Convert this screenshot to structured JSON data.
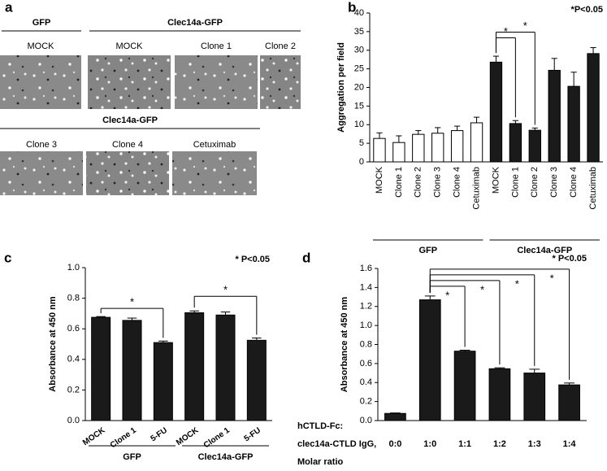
{
  "panel_a": {
    "panel": "a",
    "row1": {
      "groups": [
        {
          "name": "GFP",
          "labels": [
            "MOCK"
          ]
        },
        {
          "name": "Clec14a-GFP",
          "labels": [
            "MOCK",
            "Clone 1",
            "Clone 2"
          ]
        }
      ]
    },
    "row2": {
      "groups": [
        {
          "name": "Clec14a-GFP",
          "labels": [
            "Clone 3",
            "Clone 4",
            "Cetuximab"
          ]
        }
      ]
    }
  },
  "chart_data": [
    {
      "type": "bar",
      "panel": "b",
      "ylabel": "Aggregation per field",
      "note": "*P<0.05",
      "ylim": [
        0,
        40
      ],
      "yticks": [
        0,
        5,
        10,
        15,
        20,
        25,
        30,
        35,
        40
      ],
      "groups": [
        {
          "name": "GFP",
          "color": "#ffffff",
          "categories": [
            "MOCK",
            "Clone 1",
            "Clone 2",
            "Clone 3",
            "Clone 4",
            "Cetuximab"
          ],
          "values": [
            6.3,
            5.2,
            7.4,
            7.7,
            8.4,
            10.5
          ],
          "errors": [
            1.5,
            1.8,
            1.0,
            1.5,
            1.2,
            1.5
          ]
        },
        {
          "name": "Clec14a-GFP",
          "color": "#1a1a1a",
          "categories": [
            "MOCK",
            "Clone 1",
            "Clone 2",
            "Clone 3",
            "Clone 4",
            "Cetuximab"
          ],
          "values": [
            26.8,
            10.3,
            8.5,
            24.6,
            20.3,
            29.1
          ],
          "errors": [
            1.6,
            0.8,
            0.6,
            3.2,
            3.8,
            1.6
          ]
        }
      ],
      "significance": [
        {
          "from": 6,
          "to": 7,
          "label": "*"
        },
        {
          "from": 6,
          "to": 8,
          "label": "*"
        }
      ]
    },
    {
      "type": "bar",
      "panel": "c",
      "ylabel": "Absorbance at 450 nm",
      "note": "* P<0.05",
      "ylim": [
        0,
        1
      ],
      "yticks": [
        {
          "value": 0,
          "label": "0.0"
        },
        0.2,
        0.4,
        0.6,
        0.8,
        {
          "value": 1,
          "label": "1.0"
        }
      ],
      "groups": [
        {
          "name": "GFP",
          "color": "#1a1a1a",
          "categories": [
            "MOCK",
            "Clone 1",
            "5-FU"
          ],
          "values": [
            0.675,
            0.655,
            0.51
          ],
          "errors": [
            0.005,
            0.015,
            0.01
          ]
        },
        {
          "name": "Clec14a-GFP",
          "color": "#1a1a1a",
          "categories": [
            "MOCK",
            "Clone 1",
            "5-FU"
          ],
          "values": [
            0.705,
            0.69,
            0.525
          ],
          "errors": [
            0.012,
            0.02,
            0.015
          ]
        }
      ],
      "significance": [
        {
          "from": 0,
          "to": 2,
          "label": "*"
        },
        {
          "from": 3,
          "to": 5,
          "label": "*"
        }
      ]
    },
    {
      "type": "bar",
      "panel": "d",
      "ylabel": "Absorbance at 450 nm",
      "note": "* P<0.05",
      "xlabel": [
        "hCTLD-Fc:",
        "clec14a-CTLD IgG,",
        "Molar ratio"
      ],
      "ylim": [
        0,
        1.6
      ],
      "yticks": [
        {
          "value": 0,
          "label": "0.0"
        },
        0.2,
        0.4,
        0.6,
        0.8,
        {
          "value": 1,
          "label": "1.0"
        },
        1.2,
        1.4,
        1.6
      ],
      "groups": [
        {
          "color": "#1a1a1a",
          "categories": [
            "0:0",
            "1:0",
            "1:1",
            "1:2",
            "1:3",
            "1:4"
          ],
          "values": [
            0.075,
            1.27,
            0.73,
            0.545,
            0.5,
            0.375
          ],
          "errors": [
            0.005,
            0.04,
            0.01,
            0.01,
            0.04,
            0.02
          ]
        }
      ],
      "significance": [
        {
          "from": 1,
          "to": 2,
          "label": "*"
        },
        {
          "from": 1,
          "to": 3,
          "label": "*"
        },
        {
          "from": 1,
          "to": 4,
          "label": "*"
        },
        {
          "from": 1,
          "to": 5,
          "label": "*"
        }
      ]
    }
  ]
}
